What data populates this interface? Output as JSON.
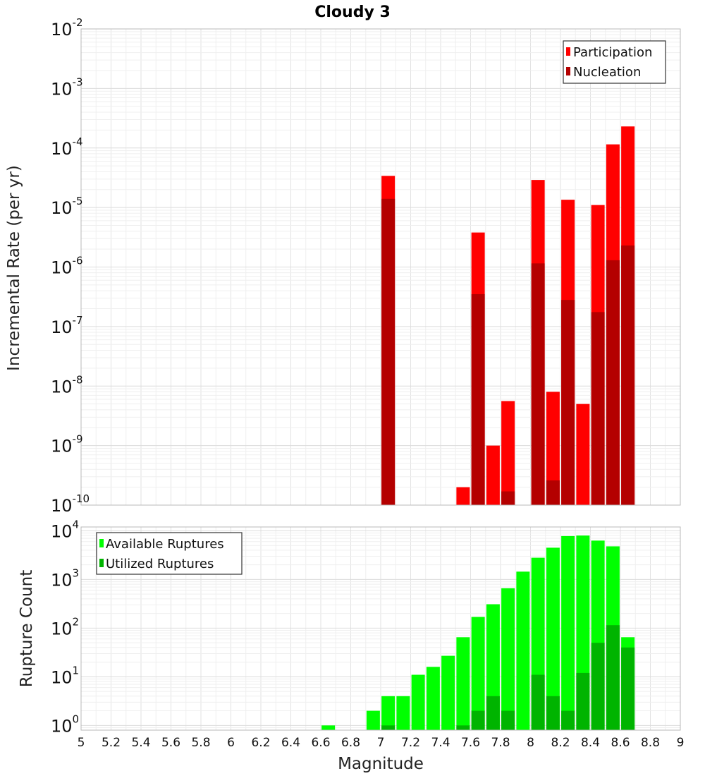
{
  "chart_data": [
    {
      "type": "bar",
      "title": "Cloudy 3",
      "xlabel": "",
      "ylabel": "Incremental Rate (per yr)",
      "yscale": "log",
      "ylim": [
        1e-10,
        0.01
      ],
      "xlim": [
        5,
        9
      ],
      "grid": true,
      "legend_placement": "top-right",
      "y_ticks": [
        {
          "base": "10",
          "exp": "-10",
          "value": 1e-10
        },
        {
          "base": "10",
          "exp": "-9",
          "value": 1e-09
        },
        {
          "base": "10",
          "exp": "-8",
          "value": 1e-08
        },
        {
          "base": "10",
          "exp": "-7",
          "value": 1e-07
        },
        {
          "base": "10",
          "exp": "-6",
          "value": 1e-06
        },
        {
          "base": "10",
          "exp": "-5",
          "value": 1e-05
        },
        {
          "base": "10",
          "exp": "-4",
          "value": 0.0001
        },
        {
          "base": "10",
          "exp": "-3",
          "value": 0.001
        },
        {
          "base": "10",
          "exp": "-2",
          "value": 0.01
        }
      ],
      "series": [
        {
          "name": "Participation",
          "color": "#ff0000",
          "points": [
            {
              "x": 7.05,
              "y": 3.4e-05
            },
            {
              "x": 7.55,
              "y": 2e-10
            },
            {
              "x": 7.65,
              "y": 3.8e-06
            },
            {
              "x": 7.75,
              "y": 1e-09
            },
            {
              "x": 7.85,
              "y": 5.6e-09
            },
            {
              "x": 8.05,
              "y": 2.9e-05
            },
            {
              "x": 8.15,
              "y": 8e-09
            },
            {
              "x": 8.25,
              "y": 1.35e-05
            },
            {
              "x": 8.35,
              "y": 5e-09
            },
            {
              "x": 8.45,
              "y": 1.1e-05
            },
            {
              "x": 8.55,
              "y": 0.000115
            },
            {
              "x": 8.65,
              "y": 0.00023
            }
          ]
        },
        {
          "name": "Nucleation",
          "color": "#b40000",
          "points": [
            {
              "x": 7.05,
              "y": 1.4e-05
            },
            {
              "x": 7.65,
              "y": 3.5e-07
            },
            {
              "x": 7.85,
              "y": 1.7e-10
            },
            {
              "x": 8.05,
              "y": 1.15e-06
            },
            {
              "x": 8.15,
              "y": 2.6e-10
            },
            {
              "x": 8.25,
              "y": 2.8e-07
            },
            {
              "x": 8.45,
              "y": 1.75e-07
            },
            {
              "x": 8.55,
              "y": 1.3e-06
            },
            {
              "x": 8.65,
              "y": 2.3e-06
            }
          ]
        }
      ]
    },
    {
      "type": "bar",
      "title": "",
      "xlabel": "Magnitude",
      "ylabel": "Rupture Count",
      "yscale": "log",
      "ylim": [
        0.8,
        12000
      ],
      "xlim": [
        5,
        9
      ],
      "grid": true,
      "legend_placement": "top-left",
      "x_ticks": [
        "5",
        "5.2",
        "5.4",
        "5.6",
        "5.8",
        "6",
        "6.2",
        "6.4",
        "6.6",
        "6.8",
        "7",
        "7.2",
        "7.4",
        "7.6",
        "7.8",
        "8",
        "8.2",
        "8.4",
        "8.6",
        "8.8",
        "9"
      ],
      "y_ticks": [
        {
          "base": "10",
          "exp": "0",
          "value": 1
        },
        {
          "base": "10",
          "exp": "1",
          "value": 10
        },
        {
          "base": "10",
          "exp": "2",
          "value": 100
        },
        {
          "base": "10",
          "exp": "3",
          "value": 1000
        },
        {
          "base": "10",
          "exp": "4",
          "value": 10000
        }
      ],
      "series": [
        {
          "name": "Available Ruptures",
          "color": "#00ff00",
          "points": [
            {
              "x": 6.65,
              "y": 1
            },
            {
              "x": 6.95,
              "y": 2
            },
            {
              "x": 7.05,
              "y": 4
            },
            {
              "x": 7.15,
              "y": 4
            },
            {
              "x": 7.25,
              "y": 11
            },
            {
              "x": 7.35,
              "y": 16
            },
            {
              "x": 7.45,
              "y": 27
            },
            {
              "x": 7.55,
              "y": 65
            },
            {
              "x": 7.65,
              "y": 170
            },
            {
              "x": 7.75,
              "y": 310
            },
            {
              "x": 7.85,
              "y": 660
            },
            {
              "x": 7.95,
              "y": 1450
            },
            {
              "x": 8.05,
              "y": 2800
            },
            {
              "x": 8.15,
              "y": 4500
            },
            {
              "x": 8.25,
              "y": 7800
            },
            {
              "x": 8.35,
              "y": 8000
            },
            {
              "x": 8.45,
              "y": 6300
            },
            {
              "x": 8.55,
              "y": 4800
            },
            {
              "x": 8.65,
              "y": 65
            }
          ]
        },
        {
          "name": "Utilized Ruptures",
          "color": "#00b400",
          "points": [
            {
              "x": 7.05,
              "y": 1
            },
            {
              "x": 7.55,
              "y": 1
            },
            {
              "x": 7.65,
              "y": 2
            },
            {
              "x": 7.75,
              "y": 4
            },
            {
              "x": 7.85,
              "y": 2
            },
            {
              "x": 8.05,
              "y": 11
            },
            {
              "x": 8.15,
              "y": 4
            },
            {
              "x": 8.25,
              "y": 2
            },
            {
              "x": 8.35,
              "y": 12
            },
            {
              "x": 8.45,
              "y": 50
            },
            {
              "x": 8.55,
              "y": 115
            },
            {
              "x": 8.65,
              "y": 40
            }
          ]
        }
      ]
    }
  ]
}
